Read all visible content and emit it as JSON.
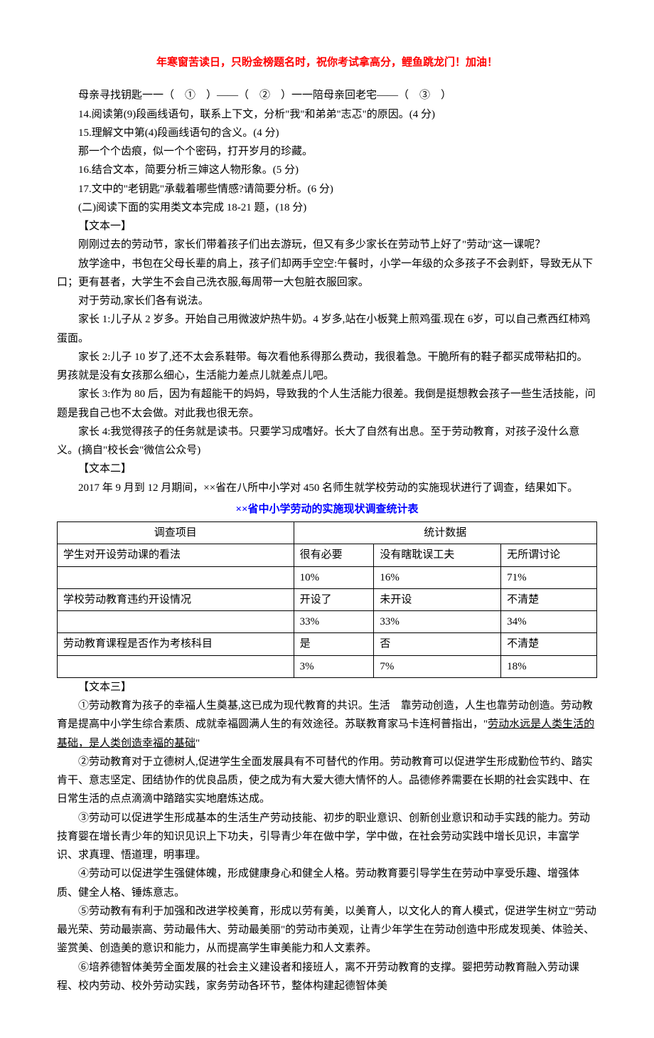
{
  "header": "年寒窗苦读日，只盼金榜题名时，祝你考试拿高分，鲤鱼跳龙门！加油！",
  "intro": {
    "line1": "母亲寻找钥匙一一（　①　）——（　②　）一一陪母亲回老宅——（　③　）",
    "q14": "14.阅读第(9)段画线语句，联系上下文，分析\"我\"和弟弟\"志忑\"的原因。(4 分)",
    "q15": "15.理解文中第(4)段画线语句的含义。(4 分)",
    "q15b": "那一个个齿痕，似一个个密码，打开岁月的珍藏。",
    "q16": "16.结合文本，简要分析三婶这人物形象。(5 分)",
    "q17": "17.文中的\"老钥匙\"承载着哪些情感?请简要分析。(6 分)",
    "sec2": "(二)阅读下面的实用类文本完成 18-21 题，(18 分)"
  },
  "text1": {
    "label": "【文本一】",
    "p1": "刚刚过去的劳动节，家长们带着孩子们出去游玩，但又有多少家长在劳动节上好了\"劳动\"这一课呢？",
    "p2": "放学途中，书包在父母长辈的肩上，孩子们却两手空空:午餐时，小学一年级的众多孩子不会剥虾，导致无从下口；更有甚者，大学生不会自己洗衣服,每周带一大包脏衣服回家。",
    "p3": "对于劳动,家长们各有说法。",
    "p4": "家长 1:儿子从 2 岁多。开始自己用微波炉热牛奶。4 岁多,站在小板凳上煎鸡蛋.现在 6岁，可以自己煮西红柿鸡蛋面。",
    "p5": "家长 2:儿子 10 岁了,还不太会系鞋带。每次看他系得那么费动，我很着急。干脆所有的鞋子都买成带粘扣的。男孩就是没有女孩那么细心，生活能力差点儿就差点儿吧。",
    "p6": "家长 3:作为 80 后，因为有超能干的妈妈，导致我的个人生活能力很差。我倒是挺想教会孩子一些生活技能，问题是我自己也不太会做。对此我也很无奈。",
    "p7": "家长 4:我觉得孩子的任务就是读书。只要学习成嗜好。长大了自然有出息。至于劳动教育，对孩子没什么意义。(摘自\"校长会\"微信公众号)"
  },
  "text2": {
    "label": "【文本二】",
    "p1": "2017 年 9 月到 12 月期间，××省在八所中小学对 450 名师生就学校劳动的实施现状进行了调查，结果如下。",
    "tableTitle": "××省中小学劳动的实施现状调查统计表",
    "table": {
      "headerCol1": "调查项目",
      "headerCol2": "统计数据",
      "rows": [
        {
          "item": "学生对开设劳动课的看法",
          "c1": "很有必要",
          "c2": "没有瞎耽误工夫",
          "c3": "无所谓讨论"
        },
        {
          "item": "",
          "c1": "10%",
          "c2": "16%",
          "c3": "71%"
        },
        {
          "item": "学校劳动教育违约开设情况",
          "c1": "开设了",
          "c2": "未开设",
          "c3": "不清楚"
        },
        {
          "item": "",
          "c1": "33%",
          "c2": "33%",
          "c3": "34%"
        },
        {
          "item": "劳动教育课程是否作为考核科目",
          "c1": "是",
          "c2": "否",
          "c3": "不清楚"
        },
        {
          "item": "",
          "c1": "3%",
          "c2": "7%",
          "c3": "18%"
        }
      ]
    }
  },
  "text3": {
    "label": "【文本三】",
    "p1a": "①劳动教育为孩子的幸福人生奠基,这已成为现代教育的共识。生活　靠劳动创造，人生也靠劳动创造。劳动教育是提高中小学生综合素质、成就幸福圆满人生的有效途径。苏联教育家马卡连柯普指出，\"",
    "p1u": "劳动水远是人类生活的基础，是人类创造幸福的基础",
    "p1b": "\"",
    "p2": "②劳动教育对于立德树人,促进学生全面发展具有不可替代的作用。劳动教育可以促进学生形成勤俭节约、踏实肯干、意志坚定、团结协作的优良品质，使之成为有大爱大德大情怀的人。品德修养需要在长期的社会实践中、在日常生活的点点滴滴中踏踏实实地磨炼达成。",
    "p3": "③劳动可以促进学生形成基本的生活生产劳动技能、初步的职业意识、创新创业意识和动手实践的能力。劳动技育婴在增长青少年的知识见识上下功夫，引导青少年在做中学，学中做，在社会劳动实践中增长见识，丰富学识、求真理、悟道理，明事理。",
    "p4": "④劳动可以促进学生强健体魄，形成健康身心和健全人格。劳动教育要引导学生在劳动中享受乐趣、增强体质、健全人格、锤炼意志。",
    "p5": "⑤劳动教有有利于加强和改进学校美育，形成以劳有美，以美育人，以文化人的育人模式，促进学生树立\"'劳动最光荣、劳动最崇高、劳动最伟大、劳动最美丽\"的劳动市美观，让青少年学生在劳动创造中形成发现美、体验关、鉴赏美、创造美的意识和能力，从而提高学生审美能力和人文素养。",
    "p6": "⑥培养德智体美劳全面发展的社会主义建设者和接班人，离不开劳动教育的支撑。婴把劳动教育融入劳动课程、校内劳动、校外劳动实践，家务劳动各环节，整体构建起德智体美"
  }
}
